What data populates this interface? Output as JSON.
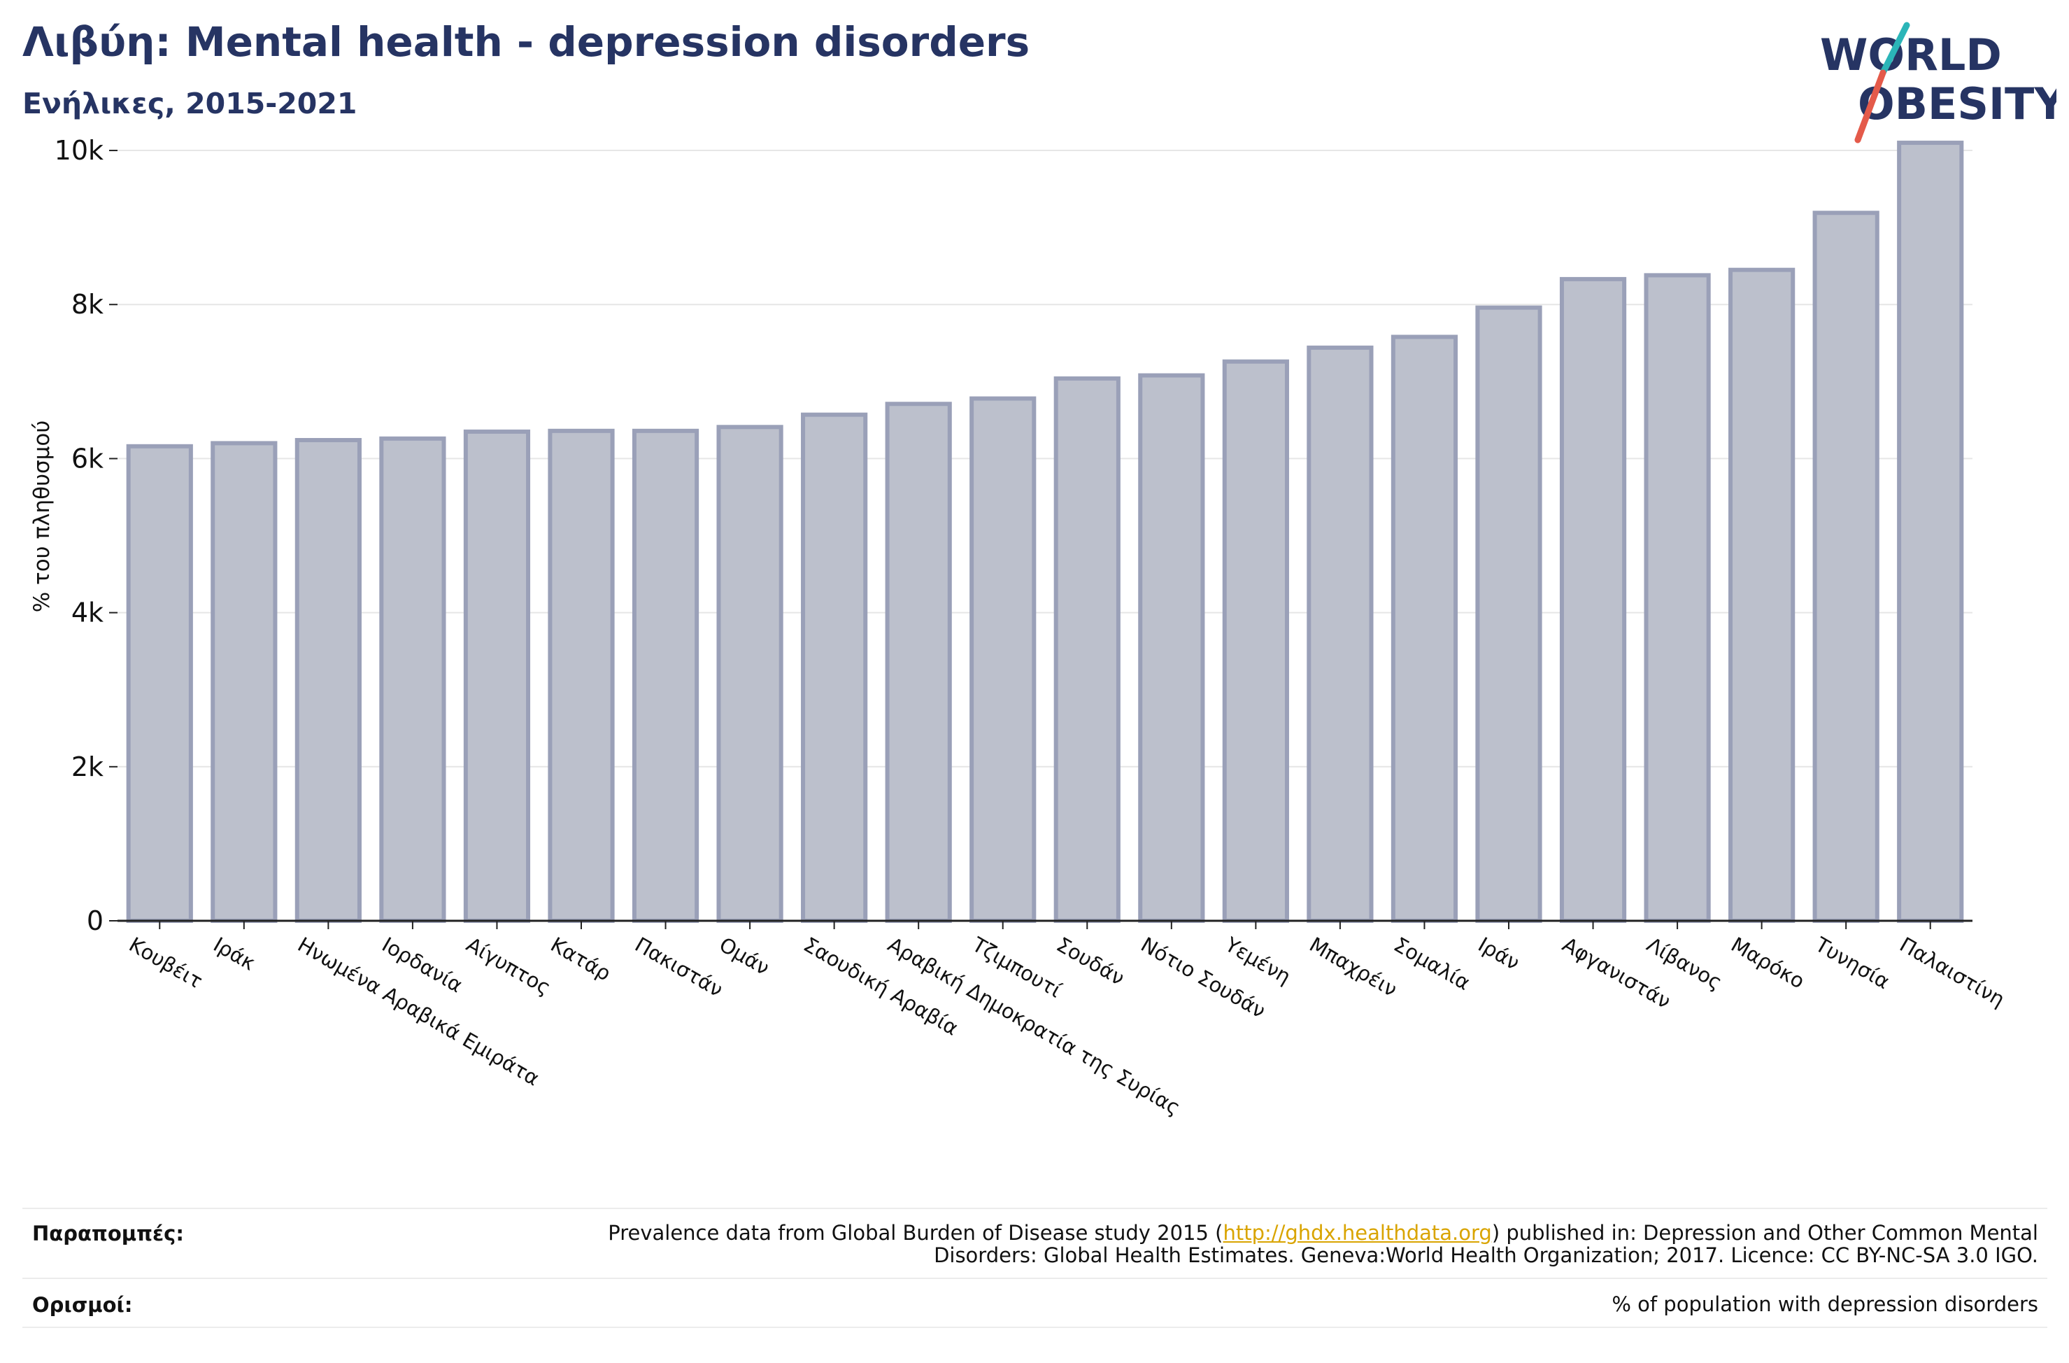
{
  "header": {
    "title": "Λιβύη: Mental health - depression disorders",
    "subtitle": "Ενήλικες, 2015-2021"
  },
  "logo": {
    "line1": "WORLD",
    "line2": "OBESITY",
    "accent_colors": [
      "#2bb5b8",
      "#e45a4a"
    ],
    "text_color": "#263463"
  },
  "chart_data": {
    "type": "bar",
    "ylabel": "% του πληθυσμού",
    "xlabel": "",
    "ylim": [
      0,
      10500
    ],
    "yticks": [
      0,
      2000,
      4000,
      6000,
      8000,
      10000
    ],
    "ytick_labels": [
      "0",
      "2k",
      "4k",
      "6k",
      "8k",
      "10k"
    ],
    "grid": true,
    "bar_fill": "#bcc0cc",
    "bar_stroke": "#9aa0b8",
    "categories": [
      "Κουβέιτ",
      "Ιράκ",
      "Ηνωμένα Αραβικά Εμιράτα",
      "Ιορδανία",
      "Αίγυπτος",
      "Κατάρ",
      "Πακιστάν",
      "Ομάν",
      "Σαουδική Αραβία",
      "Αραβική Δημοκρατία της Συρίας",
      "Τζιμπουτί",
      "Σουδάν",
      "Νότιο Σουδάν",
      "Υεμένη",
      "Μπαχρέιν",
      "Σομαλία",
      "Ιράν",
      "Αφγανιστάν",
      "Λίβανος",
      "Μαρόκο",
      "Τυνησία",
      "Παλαιστίνη"
    ],
    "values": [
      6160,
      6200,
      6240,
      6260,
      6350,
      6360,
      6360,
      6410,
      6570,
      6710,
      6780,
      7040,
      7080,
      7260,
      7440,
      7580,
      7960,
      8330,
      8380,
      8450,
      9190,
      10100
    ]
  },
  "footer": {
    "references_label": "Παραπομπές:",
    "references_text_before": "Prevalence data from Global Burden of Disease study 2015 (",
    "references_link": "http://ghdx.healthdata.org",
    "references_text_after": ") published in: Depression and Other Common Mental",
    "references_line2": "Disorders: Global Health Estimates. Geneva:World Health Organization; 2017. Licence: CC BY-NC-SA 3.0 IGO.",
    "definitions_label": "Ορισμοί:",
    "definitions_text": "% of population with depression disorders"
  }
}
